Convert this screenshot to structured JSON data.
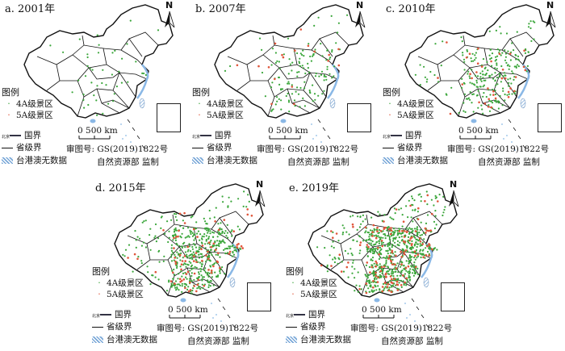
{
  "panels": [
    {
      "id": "a",
      "title": "a. 2001年",
      "count4a": 45,
      "count5a": 0
    },
    {
      "id": "b",
      "title": "b. 2007年",
      "count4a": 130,
      "count5a": 18
    },
    {
      "id": "c",
      "title": "c. 2010年",
      "count4a": 230,
      "count5a": 35
    },
    {
      "id": "d",
      "title": "d. 2015年",
      "count4a": 480,
      "count5a": 80
    },
    {
      "id": "e",
      "title": "e. 2019年",
      "count4a": 700,
      "count5a": 140
    }
  ],
  "north_label": "N",
  "legend": {
    "title": "图例",
    "item_4a": "4A级景区",
    "item_5a": "5A级景区",
    "capital": "北京",
    "national_border": "国界",
    "provincial_border": "省级界",
    "no_data": "台港澳无数据"
  },
  "scale": {
    "zero": "0",
    "label": "500 km"
  },
  "approval_no": "审图号: GS(2019)1822号",
  "supervisor": "自然资源部 监制",
  "colors": {
    "grade_4a": "#3aa63a",
    "grade_5a": "#e0553a",
    "border": "#111111",
    "water": "#8ab8e6",
    "hatch": "#7aa8d8"
  }
}
